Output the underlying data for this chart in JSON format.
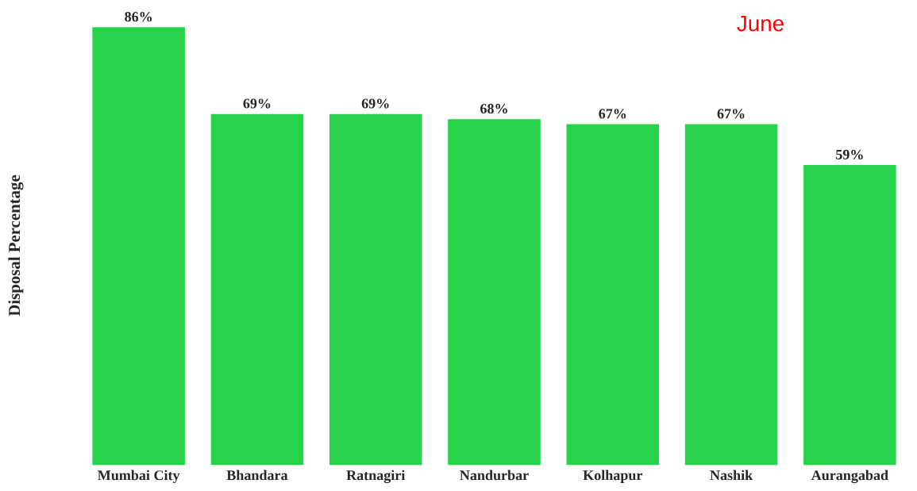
{
  "chart_data": {
    "type": "bar",
    "title": "June",
    "ylabel": "Disposal Percentage",
    "categories": [
      "Mumbai City",
      "Bhandara",
      "Ratnagiri",
      "Nandurbar",
      "Kolhapur",
      "Nashik",
      "Aurangabad"
    ],
    "values": [
      86,
      69,
      69,
      68,
      67,
      67,
      59
    ],
    "value_labels": [
      "86%",
      "69%",
      "69%",
      "68%",
      "67%",
      "67%",
      "59%"
    ],
    "color": "#27d34a",
    "grid": false,
    "legend": false
  }
}
